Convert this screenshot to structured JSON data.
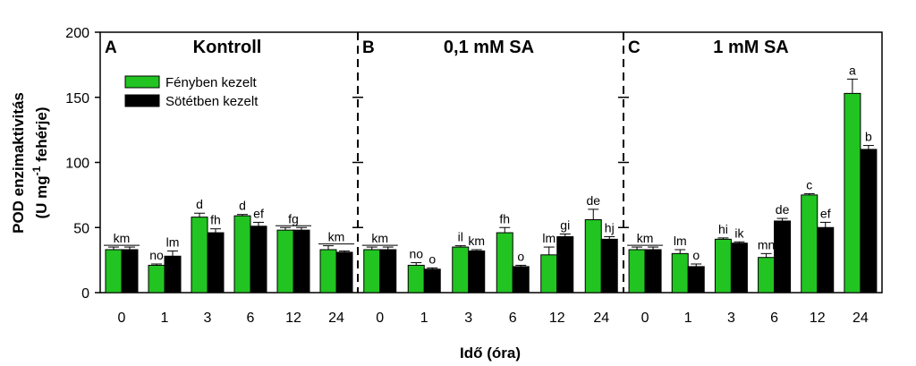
{
  "chart_data": {
    "type": "bar",
    "ylabel_line1": "POD enzimaktivitás",
    "ylabel_line2_pre": "(U mg",
    "ylabel_line2_sup": "-1",
    "ylabel_line2_post": " fehérje)",
    "xlabel": "Idő (óra)",
    "ylim": [
      0,
      200
    ],
    "yticks": [
      0,
      50,
      100,
      150,
      200
    ],
    "categories": [
      "0",
      "1",
      "3",
      "6",
      "12",
      "24"
    ],
    "colors": {
      "light": "#22c422",
      "dark": "#000000"
    },
    "legend": {
      "position": "top-left",
      "entries": [
        "Fényben kezelt",
        "Sötétben kezelt"
      ]
    },
    "panels": [
      {
        "letter": "A",
        "title": "Kontroll",
        "series": [
          {
            "name": "Fényben kezelt",
            "values": [
              33,
              21,
              58,
              59,
              48,
              33
            ],
            "errors": [
              2,
              1,
              3,
              1,
              2,
              3
            ]
          },
          {
            "name": "Sötétben kezelt",
            "values": [
              33,
              28,
              46,
              51,
              48,
              31
            ],
            "errors": [
              2,
              4,
              3,
              3,
              2,
              1
            ]
          }
        ],
        "letters": [
          "km",
          "no",
          "lm",
          "d",
          "fh",
          "d",
          "ef",
          "fg",
          "km"
        ],
        "letter_groups": [
          {
            "text": "km",
            "span": [
              0,
              1
            ]
          },
          {
            "text": "no",
            "idx": 1,
            "s": 0
          },
          {
            "text": "lm",
            "idx": 1,
            "s": 1
          },
          {
            "text": "d",
            "idx": 2,
            "s": 0
          },
          {
            "text": "fh",
            "idx": 2,
            "s": 1
          },
          {
            "text": "d",
            "idx": 3,
            "s": 0
          },
          {
            "text": "ef",
            "idx": 3,
            "s": 1
          },
          {
            "text": "fg",
            "span": [
              4,
              4
            ]
          },
          {
            "text": "km",
            "span": [
              5,
              5
            ]
          }
        ]
      },
      {
        "letter": "B",
        "title": "0,1 mM SA",
        "series": [
          {
            "name": "Fényben kezelt",
            "values": [
              33,
              21,
              35,
              46,
              29,
              56
            ],
            "errors": [
              2,
              2,
              1,
              4,
              6,
              8
            ]
          },
          {
            "name": "Sötétben kezelt",
            "values": [
              33,
              18,
              32,
              20,
              43,
              41
            ],
            "errors": [
              2,
              1,
              1,
              1,
              2,
              2
            ]
          }
        ],
        "letter_groups": [
          {
            "text": "km",
            "span": [
              0,
              0
            ]
          },
          {
            "text": "no",
            "idx": 1,
            "s": 0
          },
          {
            "text": "o",
            "idx": 1,
            "s": 1
          },
          {
            "text": "il",
            "idx": 2,
            "s": 0
          },
          {
            "text": "km",
            "idx": 2,
            "s": 1
          },
          {
            "text": "fh",
            "idx": 3,
            "s": 0
          },
          {
            "text": "o",
            "idx": 3,
            "s": 1
          },
          {
            "text": "lm",
            "idx": 4,
            "s": 0
          },
          {
            "text": "gi",
            "idx": 4,
            "s": 1
          },
          {
            "text": "de",
            "idx": 5,
            "s": 0
          },
          {
            "text": "hj",
            "idx": 5,
            "s": 1
          }
        ]
      },
      {
        "letter": "C",
        "title": "1 mM SA",
        "series": [
          {
            "name": "Fényben kezelt",
            "values": [
              33,
              30,
              41,
              27,
              75,
              153
            ],
            "errors": [
              2,
              3,
              1,
              3,
              1,
              11
            ]
          },
          {
            "name": "Sötétben kezelt",
            "values": [
              33,
              20,
              38,
              55,
              50,
              110
            ],
            "errors": [
              2,
              2,
              1,
              2,
              4,
              3
            ]
          }
        ],
        "letter_groups": [
          {
            "text": "km",
            "span": [
              0,
              0
            ]
          },
          {
            "text": "lm",
            "idx": 1,
            "s": 0
          },
          {
            "text": "o",
            "idx": 1,
            "s": 1
          },
          {
            "text": "hi",
            "idx": 2,
            "s": 0
          },
          {
            "text": "ik",
            "idx": 2,
            "s": 1
          },
          {
            "text": "mn",
            "idx": 3,
            "s": 0
          },
          {
            "text": "de",
            "idx": 3,
            "s": 1
          },
          {
            "text": "c",
            "idx": 4,
            "s": 0
          },
          {
            "text": "ef",
            "idx": 4,
            "s": 1
          },
          {
            "text": "a",
            "idx": 5,
            "s": 0
          },
          {
            "text": "b",
            "idx": 5,
            "s": 1
          }
        ]
      }
    ]
  }
}
